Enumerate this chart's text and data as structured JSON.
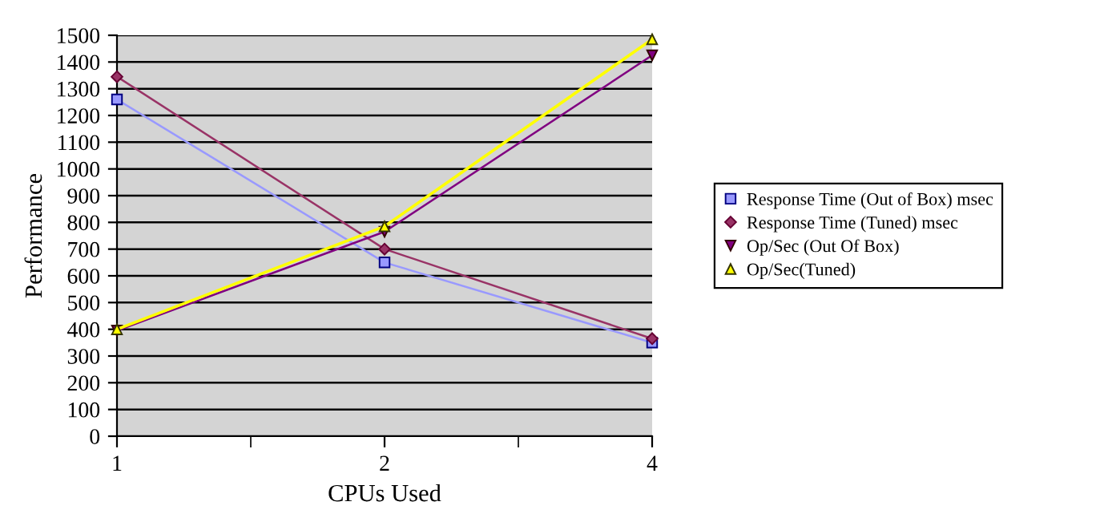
{
  "chart_data": {
    "type": "line",
    "xlabel": "CPUs Used",
    "ylabel": "Performance",
    "categories": [
      "1",
      "2",
      "4"
    ],
    "ylim": [
      0,
      1500
    ],
    "yticks": [
      0,
      100,
      200,
      300,
      400,
      500,
      600,
      700,
      800,
      900,
      1000,
      1100,
      1200,
      1300,
      1400,
      1500
    ],
    "grid": "y",
    "legend": "right",
    "series": [
      {
        "name": "Response Time (Out of Box) msec",
        "color": "#9999ff",
        "marker": "square",
        "values": [
          1260,
          650,
          350
        ]
      },
      {
        "name": "Response Time (Tuned) msec",
        "color": "#993366",
        "marker": "diamond",
        "values": [
          1345,
          700,
          365
        ]
      },
      {
        "name": "Op/Sec (Out Of Box)",
        "color": "#800080",
        "marker": "triangle_down",
        "values": [
          395,
          765,
          1425
        ]
      },
      {
        "name": "Op/Sec(Tuned)",
        "color": "#ffff00",
        "marker": "triangle",
        "values": [
          400,
          785,
          1485
        ]
      }
    ]
  }
}
